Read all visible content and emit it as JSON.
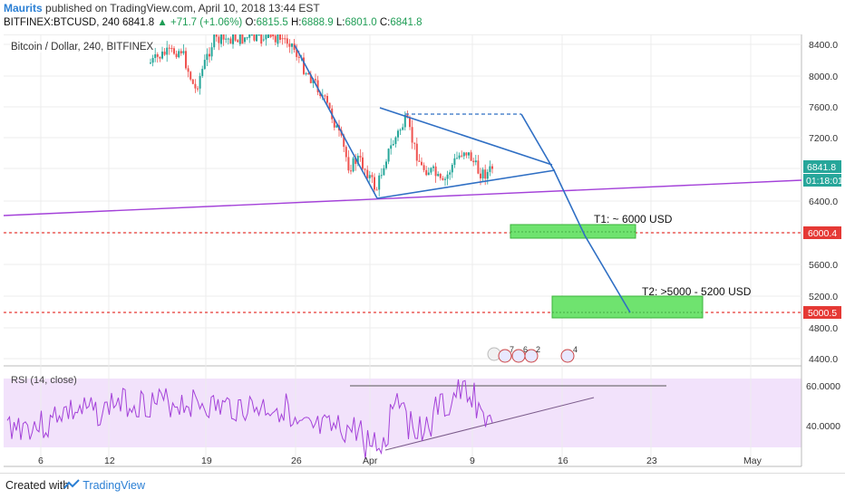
{
  "header": {
    "author": "Maurits",
    "published": "published on TradingView.com, April 10, 2018 13:44 EST",
    "symbol": "BITFINEX:BTCUSD, 240",
    "last": "6841.8",
    "change": "▲ +71.7 (+1.06%)",
    "o_label": "O:",
    "o_val": "6815.5",
    "h_label": "H:",
    "h_val": "6888.9",
    "l_label": "L:",
    "l_val": "6801.0",
    "c_label": "C:",
    "c_val": "6841.8"
  },
  "chart": {
    "series_label": "Bitcoin / Dollar, 240, BITFINEX",
    "price_ticks": [
      "8400.0",
      "8000.0",
      "7600.0",
      "7200.0",
      "6400.0",
      "5600.0",
      "5200.0",
      "4800.0",
      "4400.0"
    ],
    "current_price_tag": "6841.8",
    "countdown_tag": "01:18:01",
    "level_6000_tag": "6000.4",
    "level_5000_tag": "5000.5",
    "t1_label": "T1: ~ 6000 USD",
    "t2_label": "T2: >5000 - 5200 USD",
    "x_ticks": [
      "6",
      "12",
      "19",
      "26",
      "Apr",
      "9",
      "16",
      "23",
      "May"
    ],
    "event_badges": [
      "7",
      "6",
      "2",
      "4"
    ],
    "colors": {
      "up": "#26a69a",
      "down": "#ef5350",
      "blue": "#2f6fc4",
      "purple": "#a442d9",
      "red_line": "#e53935",
      "green_box": "#6fe36f"
    }
  },
  "rsi": {
    "label": "RSI (14, close)",
    "ticks": [
      "60.0000",
      "40.0000"
    ]
  },
  "footer": {
    "created": "Created with",
    "brand": "TradingView"
  }
}
